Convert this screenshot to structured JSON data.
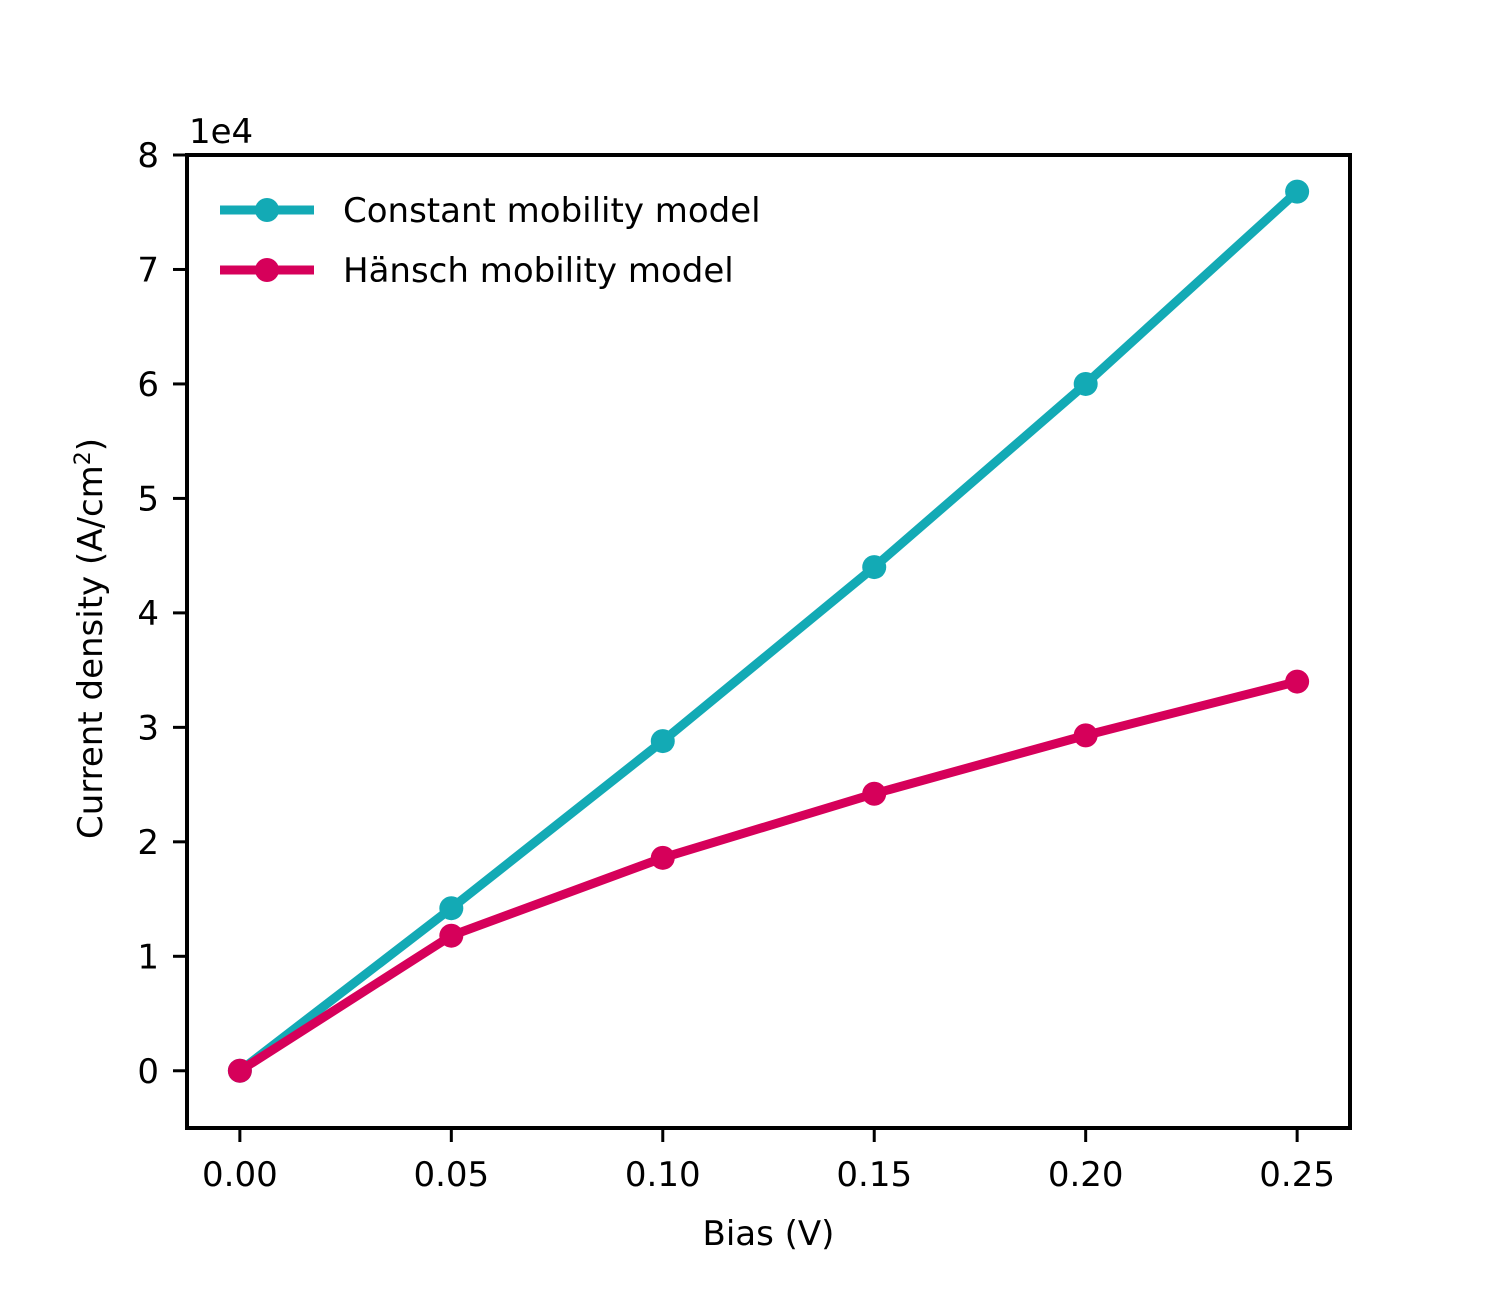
{
  "chart_data": {
    "type": "line",
    "title": "",
    "xlabel": "Bias (V)",
    "ylabel": "Current density (A/cm²)",
    "ylabel_main": "Current density (A/cm",
    "ylabel_sup": "2",
    "ylabel_close": ")",
    "y_offset_text": "1e4",
    "x": [
      0.0,
      0.05,
      0.1,
      0.15,
      0.2,
      0.25
    ],
    "xlim": [
      -0.0125,
      0.2625
    ],
    "ylim": [
      -0.5,
      8
    ],
    "xticks": [
      0.0,
      0.05,
      0.1,
      0.15,
      0.2,
      0.25
    ],
    "xtick_labels": [
      "0.00",
      "0.05",
      "0.10",
      "0.15",
      "0.20",
      "0.25"
    ],
    "yticks": [
      0,
      1,
      2,
      3,
      4,
      5,
      6,
      7,
      8
    ],
    "ytick_labels": [
      "0",
      "1",
      "2",
      "3",
      "4",
      "5",
      "6",
      "7",
      "8"
    ],
    "y_unit_multiplier": 10000,
    "grid": false,
    "legend_position": "top-left",
    "series": [
      {
        "name": "Constant mobility model",
        "color": "#13aab5",
        "marker": "circle",
        "values": [
          0,
          1.42,
          2.88,
          4.4,
          6.0,
          7.68
        ]
      },
      {
        "name": "Hänsch mobility model",
        "color": "#d6005a",
        "marker": "circle",
        "values": [
          0,
          1.18,
          1.86,
          2.42,
          2.93,
          3.4
        ]
      }
    ]
  }
}
